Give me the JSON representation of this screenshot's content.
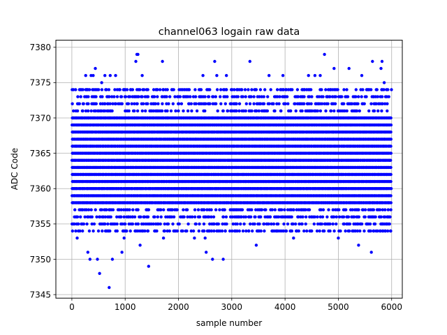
{
  "chart_data": {
    "type": "scatter",
    "title": "channel063 logain raw data",
    "xlabel": "sample number",
    "ylabel": "ADC Code",
    "xlim": [
      -300,
      6200
    ],
    "ylim": [
      7344.5,
      7381
    ],
    "xticks": [
      0,
      1000,
      2000,
      3000,
      4000,
      5000,
      6000
    ],
    "yticks": [
      7345,
      7350,
      7355,
      7360,
      7365,
      7370,
      7375,
      7380
    ],
    "grid": true,
    "marker_color": "#0000ff",
    "sample_count": 6000,
    "sample_step": 20,
    "core_range": [
      7358,
      7370
    ],
    "outlier_points": [
      {
        "x": 100,
        "y": 7353
      },
      {
        "x": 140,
        "y": 7357
      },
      {
        "x": 180,
        "y": 7374
      },
      {
        "x": 200,
        "y": 7354
      },
      {
        "x": 260,
        "y": 7376
      },
      {
        "x": 300,
        "y": 7351
      },
      {
        "x": 340,
        "y": 7350
      },
      {
        "x": 360,
        "y": 7376
      },
      {
        "x": 400,
        "y": 7376
      },
      {
        "x": 440,
        "y": 7377
      },
      {
        "x": 480,
        "y": 7350
      },
      {
        "x": 520,
        "y": 7348
      },
      {
        "x": 560,
        "y": 7375
      },
      {
        "x": 620,
        "y": 7376
      },
      {
        "x": 700,
        "y": 7346
      },
      {
        "x": 720,
        "y": 7376
      },
      {
        "x": 760,
        "y": 7350
      },
      {
        "x": 820,
        "y": 7376
      },
      {
        "x": 940,
        "y": 7351
      },
      {
        "x": 980,
        "y": 7353
      },
      {
        "x": 1000,
        "y": 7374
      },
      {
        "x": 1200,
        "y": 7378
      },
      {
        "x": 1220,
        "y": 7379
      },
      {
        "x": 1240,
        "y": 7379
      },
      {
        "x": 1280,
        "y": 7352
      },
      {
        "x": 1320,
        "y": 7376
      },
      {
        "x": 1440,
        "y": 7349
      },
      {
        "x": 1700,
        "y": 7378
      },
      {
        "x": 1720,
        "y": 7353
      },
      {
        "x": 1980,
        "y": 7354
      },
      {
        "x": 2300,
        "y": 7353
      },
      {
        "x": 2460,
        "y": 7376
      },
      {
        "x": 2500,
        "y": 7353
      },
      {
        "x": 2520,
        "y": 7351
      },
      {
        "x": 2640,
        "y": 7350
      },
      {
        "x": 2680,
        "y": 7378
      },
      {
        "x": 2720,
        "y": 7376
      },
      {
        "x": 2840,
        "y": 7350
      },
      {
        "x": 2900,
        "y": 7376
      },
      {
        "x": 3340,
        "y": 7378
      },
      {
        "x": 3460,
        "y": 7352
      },
      {
        "x": 3700,
        "y": 7376
      },
      {
        "x": 3960,
        "y": 7376
      },
      {
        "x": 4160,
        "y": 7353
      },
      {
        "x": 4440,
        "y": 7376
      },
      {
        "x": 4560,
        "y": 7376
      },
      {
        "x": 4660,
        "y": 7376
      },
      {
        "x": 4740,
        "y": 7379
      },
      {
        "x": 4920,
        "y": 7377
      },
      {
        "x": 5000,
        "y": 7353
      },
      {
        "x": 5200,
        "y": 7377
      },
      {
        "x": 5380,
        "y": 7352
      },
      {
        "x": 5440,
        "y": 7376
      },
      {
        "x": 5620,
        "y": 7351
      },
      {
        "x": 5640,
        "y": 7378
      },
      {
        "x": 5800,
        "y": 7377
      },
      {
        "x": 5820,
        "y": 7378
      },
      {
        "x": 5840,
        "y": 7355
      },
      {
        "x": 5860,
        "y": 7375
      },
      {
        "x": 5920,
        "y": 7355
      }
    ]
  }
}
